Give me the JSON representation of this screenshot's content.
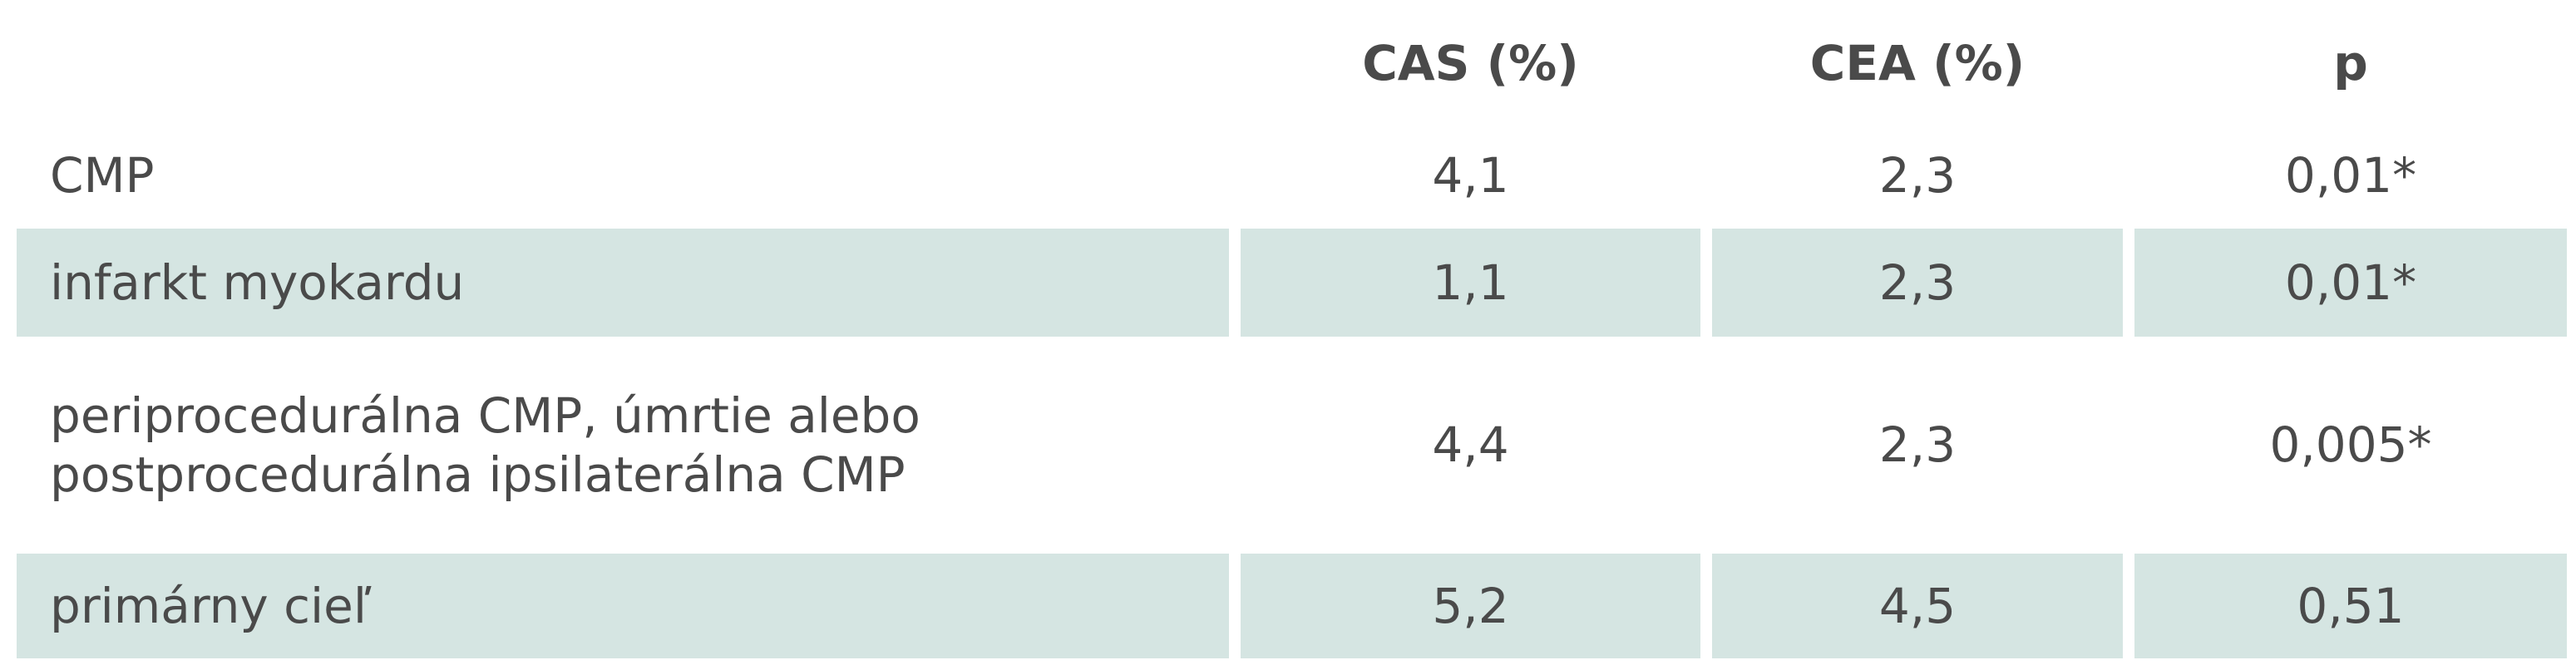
{
  "table": {
    "header": [
      "CAS (%)",
      "CEA (%)",
      "p"
    ],
    "rows": [
      [
        "CMP",
        "4,1",
        "2,3",
        "0,01*"
      ],
      [
        "infarkt myokardu",
        "1,1",
        "2,3",
        "0,01*"
      ],
      [
        "periprocedurálna CMP, úmrtie alebo\npostprocedurálna ipsilaterálna CMP",
        "4,4",
        "2,3",
        "0,005*"
      ],
      [
        "primárny cieľ",
        "5,2",
        "4,5",
        "0,51"
      ]
    ]
  }
}
